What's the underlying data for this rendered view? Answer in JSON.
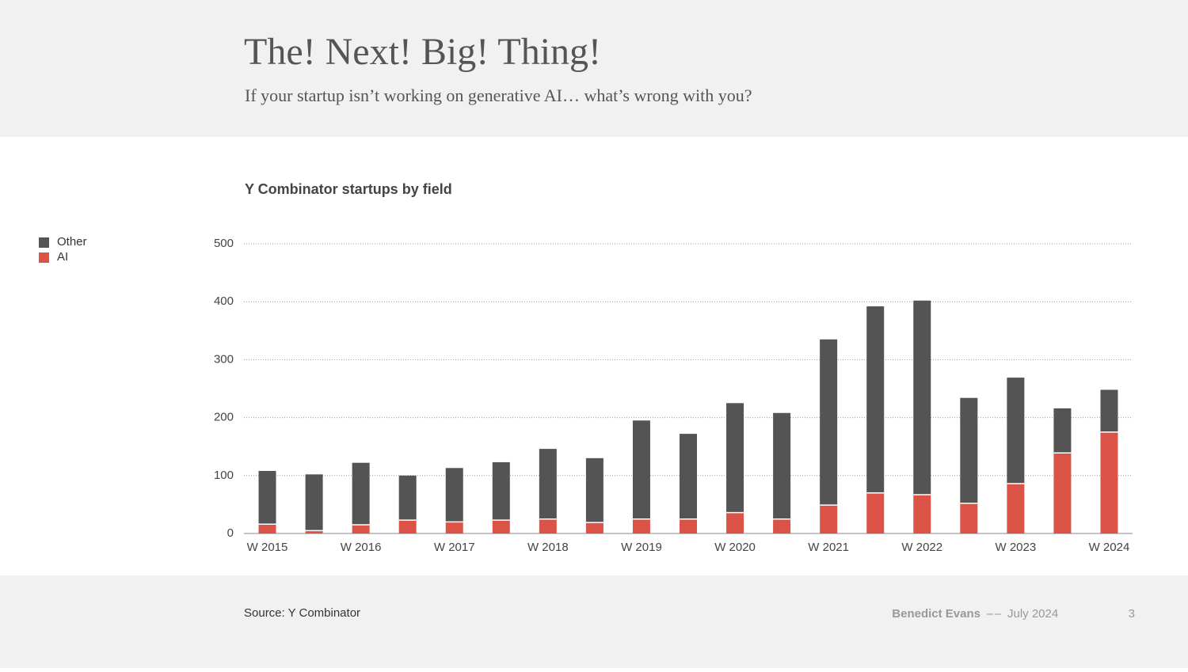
{
  "header": {
    "title": "The! Next! Big! Thing!",
    "subtitle": "If your startup isn’t working on generative AI… what’s wrong with you?"
  },
  "chart_data": {
    "type": "bar",
    "stacked": true,
    "title": "Y Combinator startups by field",
    "categories": [
      "W 2015",
      null,
      "W 2016",
      null,
      "W 2017",
      null,
      "W 2018",
      null,
      "W 2019",
      null,
      "W 2020",
      null,
      "W 2021",
      null,
      "W 2022",
      null,
      "W 2023",
      null,
      "W 2024"
    ],
    "series": [
      {
        "name": "AI",
        "color": "#db5346",
        "values": [
          16,
          5,
          15,
          23,
          20,
          23,
          25,
          19,
          25,
          25,
          36,
          25,
          49,
          70,
          67,
          52,
          86,
          139,
          175
        ]
      },
      {
        "name": "Other",
        "color": "#545454",
        "values": [
          92,
          97,
          107,
          77,
          93,
          100,
          121,
          111,
          170,
          147,
          189,
          183,
          286,
          322,
          335,
          182,
          183,
          77,
          73
        ]
      }
    ],
    "ylim": [
      0,
      500
    ],
    "yticks": [
      0,
      100,
      200,
      300,
      400,
      500
    ],
    "grid": true,
    "legend": "top-left"
  },
  "footer": {
    "source": "Source: Y Combinator",
    "author": "Benedict Evans",
    "date": "July 2024",
    "page": "3"
  }
}
